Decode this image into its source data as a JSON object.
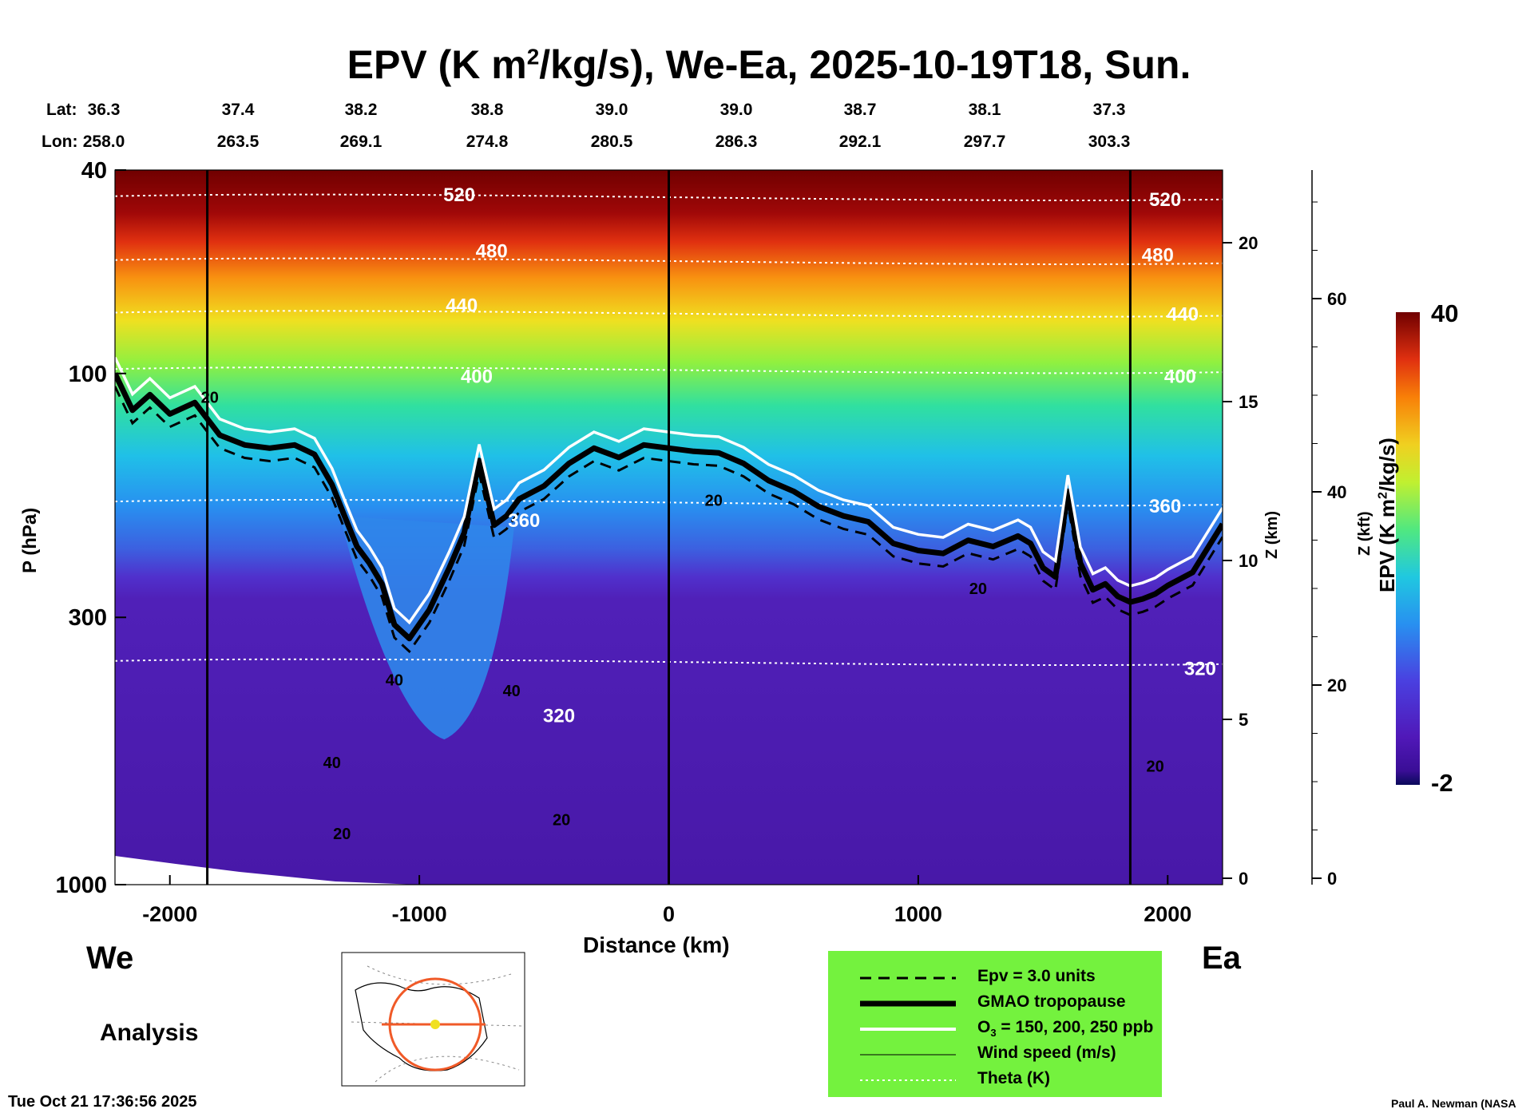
{
  "title": {
    "pre": "EPV (K m",
    "sup": "2",
    "post": "/kg/s), We-Ea, 2025-10-19T18, Sun."
  },
  "header": {
    "lat_label": "Lat:",
    "lon_label": "Lon:",
    "lat": [
      "36.3",
      "37.4",
      "38.2",
      "38.8",
      "39.0",
      "39.0",
      "38.7",
      "38.1",
      "37.3"
    ],
    "lon": [
      "258.0",
      "263.5",
      "269.1",
      "274.8",
      "280.5",
      "286.3",
      "292.1",
      "297.7",
      "303.3"
    ]
  },
  "sides": {
    "west": "We",
    "east": "Ea"
  },
  "analysis": "Analysis",
  "timestamp": "Tue Oct 21 17:36:56 2025",
  "credit": "Paul A. Newman (NASA",
  "colorbar": {
    "title_pre": "EPV (K m",
    "title_sup": "2",
    "title_post": "/kg/s)",
    "max_label": "40",
    "min_label": "-2",
    "colors": [
      "#0a0a5a",
      "#3a0e96",
      "#5018b8",
      "#5a22cc",
      "#4a40e0",
      "#3070ec",
      "#20a0f0",
      "#20c8e0",
      "#30e0a0",
      "#70f060",
      "#c0f030",
      "#f0e020",
      "#f8b010",
      "#f88008",
      "#f04808",
      "#d82008",
      "#a00808",
      "#700000"
    ]
  },
  "legend": {
    "items": [
      {
        "label": "Epv = 3.0 units",
        "style": "dashed"
      },
      {
        "label": "GMAO tropopause",
        "style": "thick"
      },
      {
        "label_pre": "O",
        "label_sub": "3",
        "label_post": " = 150, 200, 250 ppb",
        "style": "white"
      },
      {
        "label": "Wind speed (m/s)",
        "style": "thin"
      },
      {
        "label": "Theta (K)",
        "style": "dotted"
      }
    ]
  },
  "chart_data": {
    "type": "heatmap",
    "title": "EPV (K m2/kg/s), We-Ea, 2025-10-19T18, Sun.",
    "xlabel": "Distance (km)",
    "ylabel": "P (hPa)",
    "xlim": [
      -2220,
      2220
    ],
    "ylim": [
      1000,
      40
    ],
    "x_ticks": [
      -2000,
      -1000,
      0,
      1000,
      2000
    ],
    "x_tick_labels": [
      "-2000",
      "-1000",
      "0",
      "1000",
      "2000"
    ],
    "y_ticks": [
      40,
      100,
      300,
      1000
    ],
    "y_tick_labels": [
      "40",
      "100",
      "300",
      "1000"
    ],
    "z_km_label": "Z (km)",
    "z_km_ticks": [
      0,
      5,
      10,
      15,
      20
    ],
    "z_km_tick_labels": [
      "0",
      "5",
      "10",
      "15",
      "20"
    ],
    "z_kft_label": "Z (kft)",
    "z_kft_ticks": [
      0,
      20,
      40,
      60
    ],
    "z_kft_tick_labels": [
      "0",
      "20",
      "40",
      "60"
    ],
    "epv_range": [
      -2,
      40
    ],
    "vertical_markers_km": [
      -1850,
      0,
      1850
    ],
    "theta_levels_K": [
      {
        "value": 520,
        "pressure_hPa": 45
      },
      {
        "value": 480,
        "pressure_hPa": 60
      },
      {
        "value": 440,
        "pressure_hPa": 76
      },
      {
        "value": 400,
        "pressure_hPa": 98
      },
      {
        "value": 360,
        "pressure_hPa": 178
      },
      {
        "value": 320,
        "pressure_hPa": 365
      }
    ],
    "theta_labels": [
      {
        "text": "520",
        "x": -840,
        "p": 45
      },
      {
        "text": "520",
        "x": 1990,
        "p": 46
      },
      {
        "text": "480",
        "x": -710,
        "p": 58
      },
      {
        "text": "480",
        "x": 1960,
        "p": 59
      },
      {
        "text": "440",
        "x": -830,
        "p": 74
      },
      {
        "text": "440",
        "x": 2060,
        "p": 77
      },
      {
        "text": "400",
        "x": -770,
        "p": 102
      },
      {
        "text": "400",
        "x": 2050,
        "p": 102
      },
      {
        "text": "360",
        "x": -580,
        "p": 195
      },
      {
        "text": "360",
        "x": 1990,
        "p": 183
      },
      {
        "text": "320",
        "x": -440,
        "p": 470
      },
      {
        "text": "320",
        "x": 2130,
        "p": 380
      }
    ],
    "wind_labels": [
      {
        "text": "20",
        "x": -1840,
        "p": 112
      },
      {
        "text": "20",
        "x": 180,
        "p": 178
      },
      {
        "text": "20",
        "x": 1240,
        "p": 265
      },
      {
        "text": "40",
        "x": -1100,
        "p": 400
      },
      {
        "text": "40",
        "x": -630,
        "p": 420
      },
      {
        "text": "40",
        "x": -1350,
        "p": 580
      },
      {
        "text": "20",
        "x": -1310,
        "p": 800
      },
      {
        "text": "20",
        "x": -430,
        "p": 750
      },
      {
        "text": "20",
        "x": 1950,
        "p": 590
      }
    ],
    "tropopause": {
      "x": [
        -2220,
        -2150,
        -2080,
        -2000,
        -1900,
        -1800,
        -1700,
        -1600,
        -1500,
        -1420,
        -1350,
        -1300,
        -1250,
        -1200,
        -1150,
        -1100,
        -1040,
        -960,
        -880,
        -820,
        -760,
        -700,
        -650,
        -600,
        -500,
        -400,
        -300,
        -200,
        -100,
        0,
        100,
        200,
        300,
        400,
        500,
        600,
        700,
        800,
        900,
        1000,
        1100,
        1200,
        1300,
        1400,
        1450,
        1500,
        1550,
        1600,
        1650,
        1700,
        1750,
        1800,
        1850,
        1900,
        1950,
        2000,
        2100,
        2220
      ],
      "p": [
        100,
        118,
        110,
        120,
        114,
        132,
        138,
        140,
        138,
        144,
        165,
        190,
        218,
        235,
        258,
        310,
        330,
        290,
        240,
        205,
        148,
        198,
        190,
        176,
        166,
        150,
        140,
        146,
        138,
        140,
        142,
        143,
        150,
        162,
        170,
        182,
        190,
        195,
        215,
        222,
        225,
        212,
        218,
        208,
        215,
        240,
        250,
        170,
        235,
        265,
        258,
        273,
        280,
        276,
        270,
        260,
        245,
        197
      ]
    }
  }
}
